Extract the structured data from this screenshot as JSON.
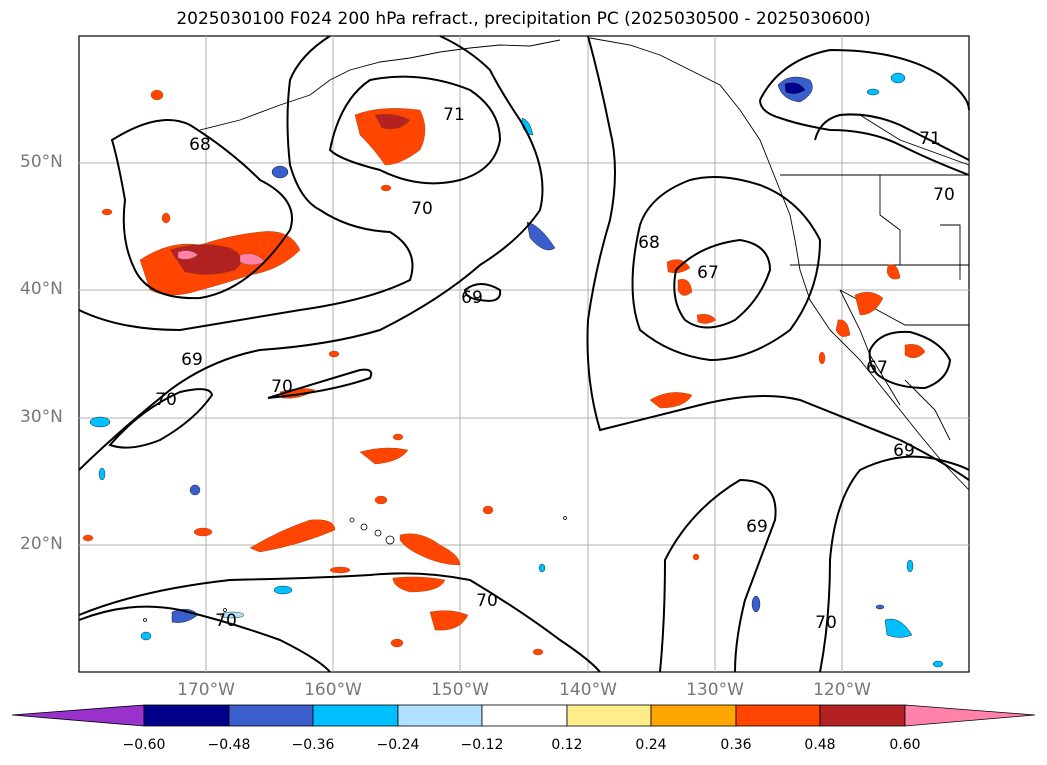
{
  "title": "2025030100 F024 200 hPa refract., precipitation PC (2025030500 - 2025030600)",
  "latitude_labels": [
    "50°N",
    "40°N",
    "30°N",
    "20°N"
  ],
  "longitude_labels": [
    "170°W",
    "160°W",
    "150°W",
    "140°W",
    "130°W",
    "120°W"
  ],
  "contour_labels": [
    "68",
    "71",
    "70",
    "69",
    "70",
    "70",
    "68",
    "67",
    "71",
    "70",
    "69",
    "70",
    "70",
    "69",
    "70",
    "67",
    "69"
  ],
  "colorbar": {
    "ticks": [
      "−0.60",
      "−0.48",
      "−0.36",
      "−0.24",
      "−0.12",
      "0.12",
      "0.24",
      "0.36",
      "0.48",
      "0.60"
    ],
    "colors": [
      "#9932cc",
      "#00008b",
      "#3a5fcd",
      "#00bfff",
      "#b0e2ff",
      "#ffffff",
      "#ffec8b",
      "#ffa500",
      "#ff4500",
      "#b22222",
      "#ff82ab"
    ]
  }
}
